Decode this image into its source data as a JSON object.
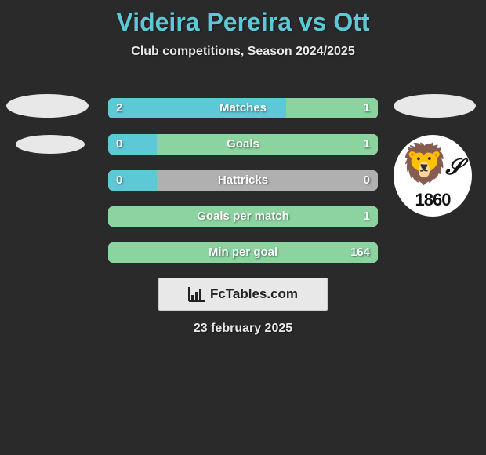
{
  "header": {
    "title": "Videira Pereira vs Ott",
    "subtitle": "Club competitions, Season 2024/2025",
    "title_color": "#5ec9d6",
    "subtitle_color": "#e8e8e8"
  },
  "bars": [
    {
      "label": "Matches",
      "left_val": "2",
      "right_val": "1",
      "left_pct": 66,
      "right_pct": 34
    },
    {
      "label": "Goals",
      "left_val": "0",
      "right_val": "1",
      "left_pct": 18,
      "right_pct": 82
    },
    {
      "label": "Hattricks",
      "left_val": "0",
      "right_val": "0",
      "left_pct": 18,
      "right_pct": 0
    },
    {
      "label": "Goals per match",
      "left_val": "",
      "right_val": "1",
      "left_pct": 0,
      "right_pct": 100
    },
    {
      "label": "Min per goal",
      "left_val": "",
      "right_val": "164",
      "left_pct": 0,
      "right_pct": 100
    }
  ],
  "bar_style": {
    "left_color": "#5ec9d6",
    "right_color": "#8bd4a0",
    "bg_color": "#b0b0b0",
    "height": 26,
    "gap": 20,
    "font_size": 15
  },
  "right_club": {
    "year": "1860"
  },
  "footer_brand": {
    "text": "FcTables.com"
  },
  "date": "23 february 2025",
  "background_color": "#2a2a2a"
}
